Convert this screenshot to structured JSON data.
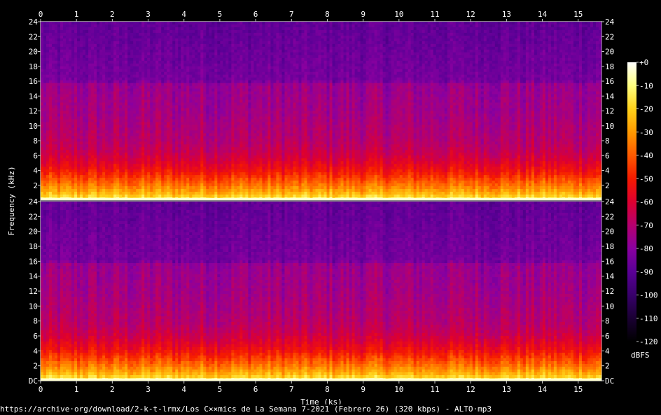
{
  "chart_data": {
    "type": "heatmap",
    "title": "",
    "xlabel": "Time (ks)",
    "ylabel": "Frequency (kHz)",
    "x_ticks": [
      "0",
      "1",
      "2",
      "3",
      "4",
      "5",
      "6",
      "7",
      "8",
      "9",
      "10",
      "11",
      "12",
      "13",
      "14",
      "15"
    ],
    "xlim": [
      0,
      15.65
    ],
    "channels": [
      {
        "y_ticks": [
          "24",
          "22",
          "20",
          "18",
          "16",
          "14",
          "12",
          "10",
          "8",
          "6",
          "4",
          "2"
        ],
        "ylim": [
          0,
          24
        ]
      },
      {
        "y_ticks": [
          "24",
          "22",
          "20",
          "18",
          "16",
          "14",
          "12",
          "10",
          "8",
          "6",
          "4",
          "2",
          "DC"
        ],
        "ylim": [
          0,
          24
        ]
      }
    ],
    "colorbar": {
      "label": "dBFS",
      "ticks": [
        "+0",
        "-10",
        "-20",
        "-30",
        "-40",
        "-50",
        "-60",
        "-70",
        "-80",
        "-90",
        "-100",
        "-110",
        "-120"
      ],
      "range": [
        -120,
        0
      ],
      "colors": [
        "#000000",
        "#1a0033",
        "#38006b",
        "#5a0096",
        "#8a00a0",
        "#b5006e",
        "#dd0030",
        "#f51a00",
        "#ff5a00",
        "#ff9a00",
        "#ffd21a",
        "#ffff80",
        "#ffffff"
      ]
    },
    "intensity_profile": {
      "freq_khz": [
        0,
        0.3,
        1,
        2,
        3,
        4,
        5,
        6,
        7,
        8,
        10,
        12,
        14,
        15.6,
        16,
        18,
        20,
        22,
        24
      ],
      "level": [
        0.98,
        0.86,
        0.78,
        0.7,
        0.63,
        0.56,
        0.51,
        0.47,
        0.44,
        0.42,
        0.4,
        0.38,
        0.37,
        0.36,
        0.3,
        0.29,
        0.28,
        0.27,
        0.26
      ]
    }
  },
  "footer": "https://archive·org/download/2-k-t-lrmx/Los C××mics de La Semana 7-2021 (Febrero 26) (320 kbps) - ALTO·mp3"
}
